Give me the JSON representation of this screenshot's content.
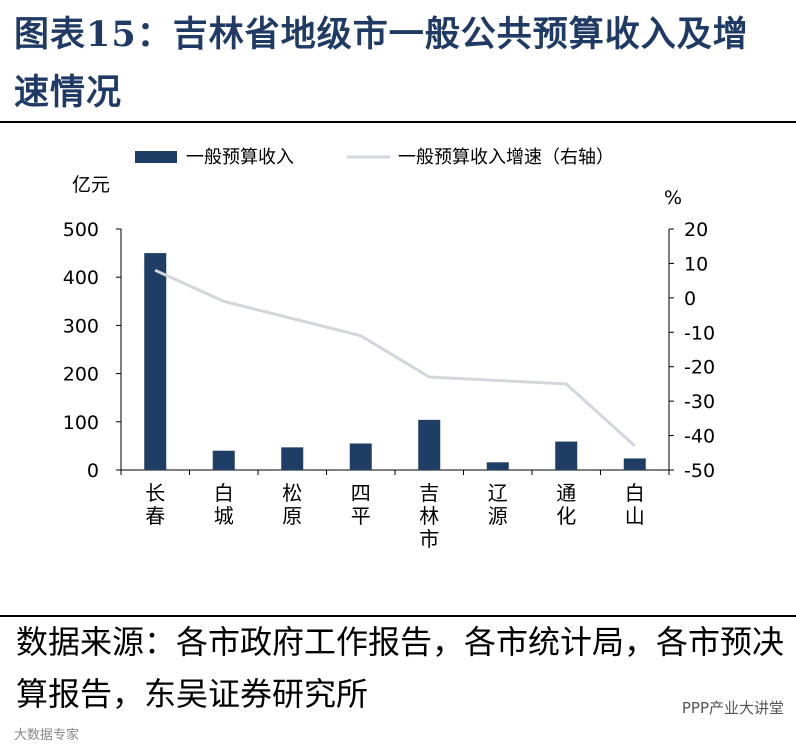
{
  "title": "图表15：吉林省地级市一般公共预算收入及增速情况",
  "source": "数据来源：各市政府工作报告，各市统计局，各市预决算报告，东吴证券研究所",
  "watermark_right": "PPP产业大讲堂",
  "watermark_left": "大数据专家",
  "colors": {
    "bar": "#1f3e66",
    "line": "#d3d6dc",
    "title": "#1f3a64"
  },
  "chart_data": {
    "type": "bar",
    "categories": [
      "长春",
      "白城",
      "松原",
      "四平",
      "吉林市",
      "辽源",
      "通化",
      "白山"
    ],
    "series": [
      {
        "name": "一般预算收入",
        "type": "bar",
        "axis": "left",
        "values": [
          450,
          40,
          47,
          55,
          104,
          16,
          59,
          24
        ]
      },
      {
        "name": "一般预算收入增速（右轴）",
        "type": "line",
        "axis": "right",
        "values": [
          8,
          -1,
          -6,
          -11,
          -23,
          -24,
          -25,
          -43
        ]
      }
    ],
    "ylabel": "亿元",
    "ylabel_right": "%",
    "ylim": [
      0,
      500
    ],
    "yticks": [
      0,
      100,
      200,
      300,
      400,
      500
    ],
    "ylim_right": [
      -50,
      20
    ],
    "yticks_right": [
      -50,
      -40,
      -30,
      -20,
      -10,
      0,
      10,
      20
    ],
    "grid": false,
    "legend": "top"
  }
}
